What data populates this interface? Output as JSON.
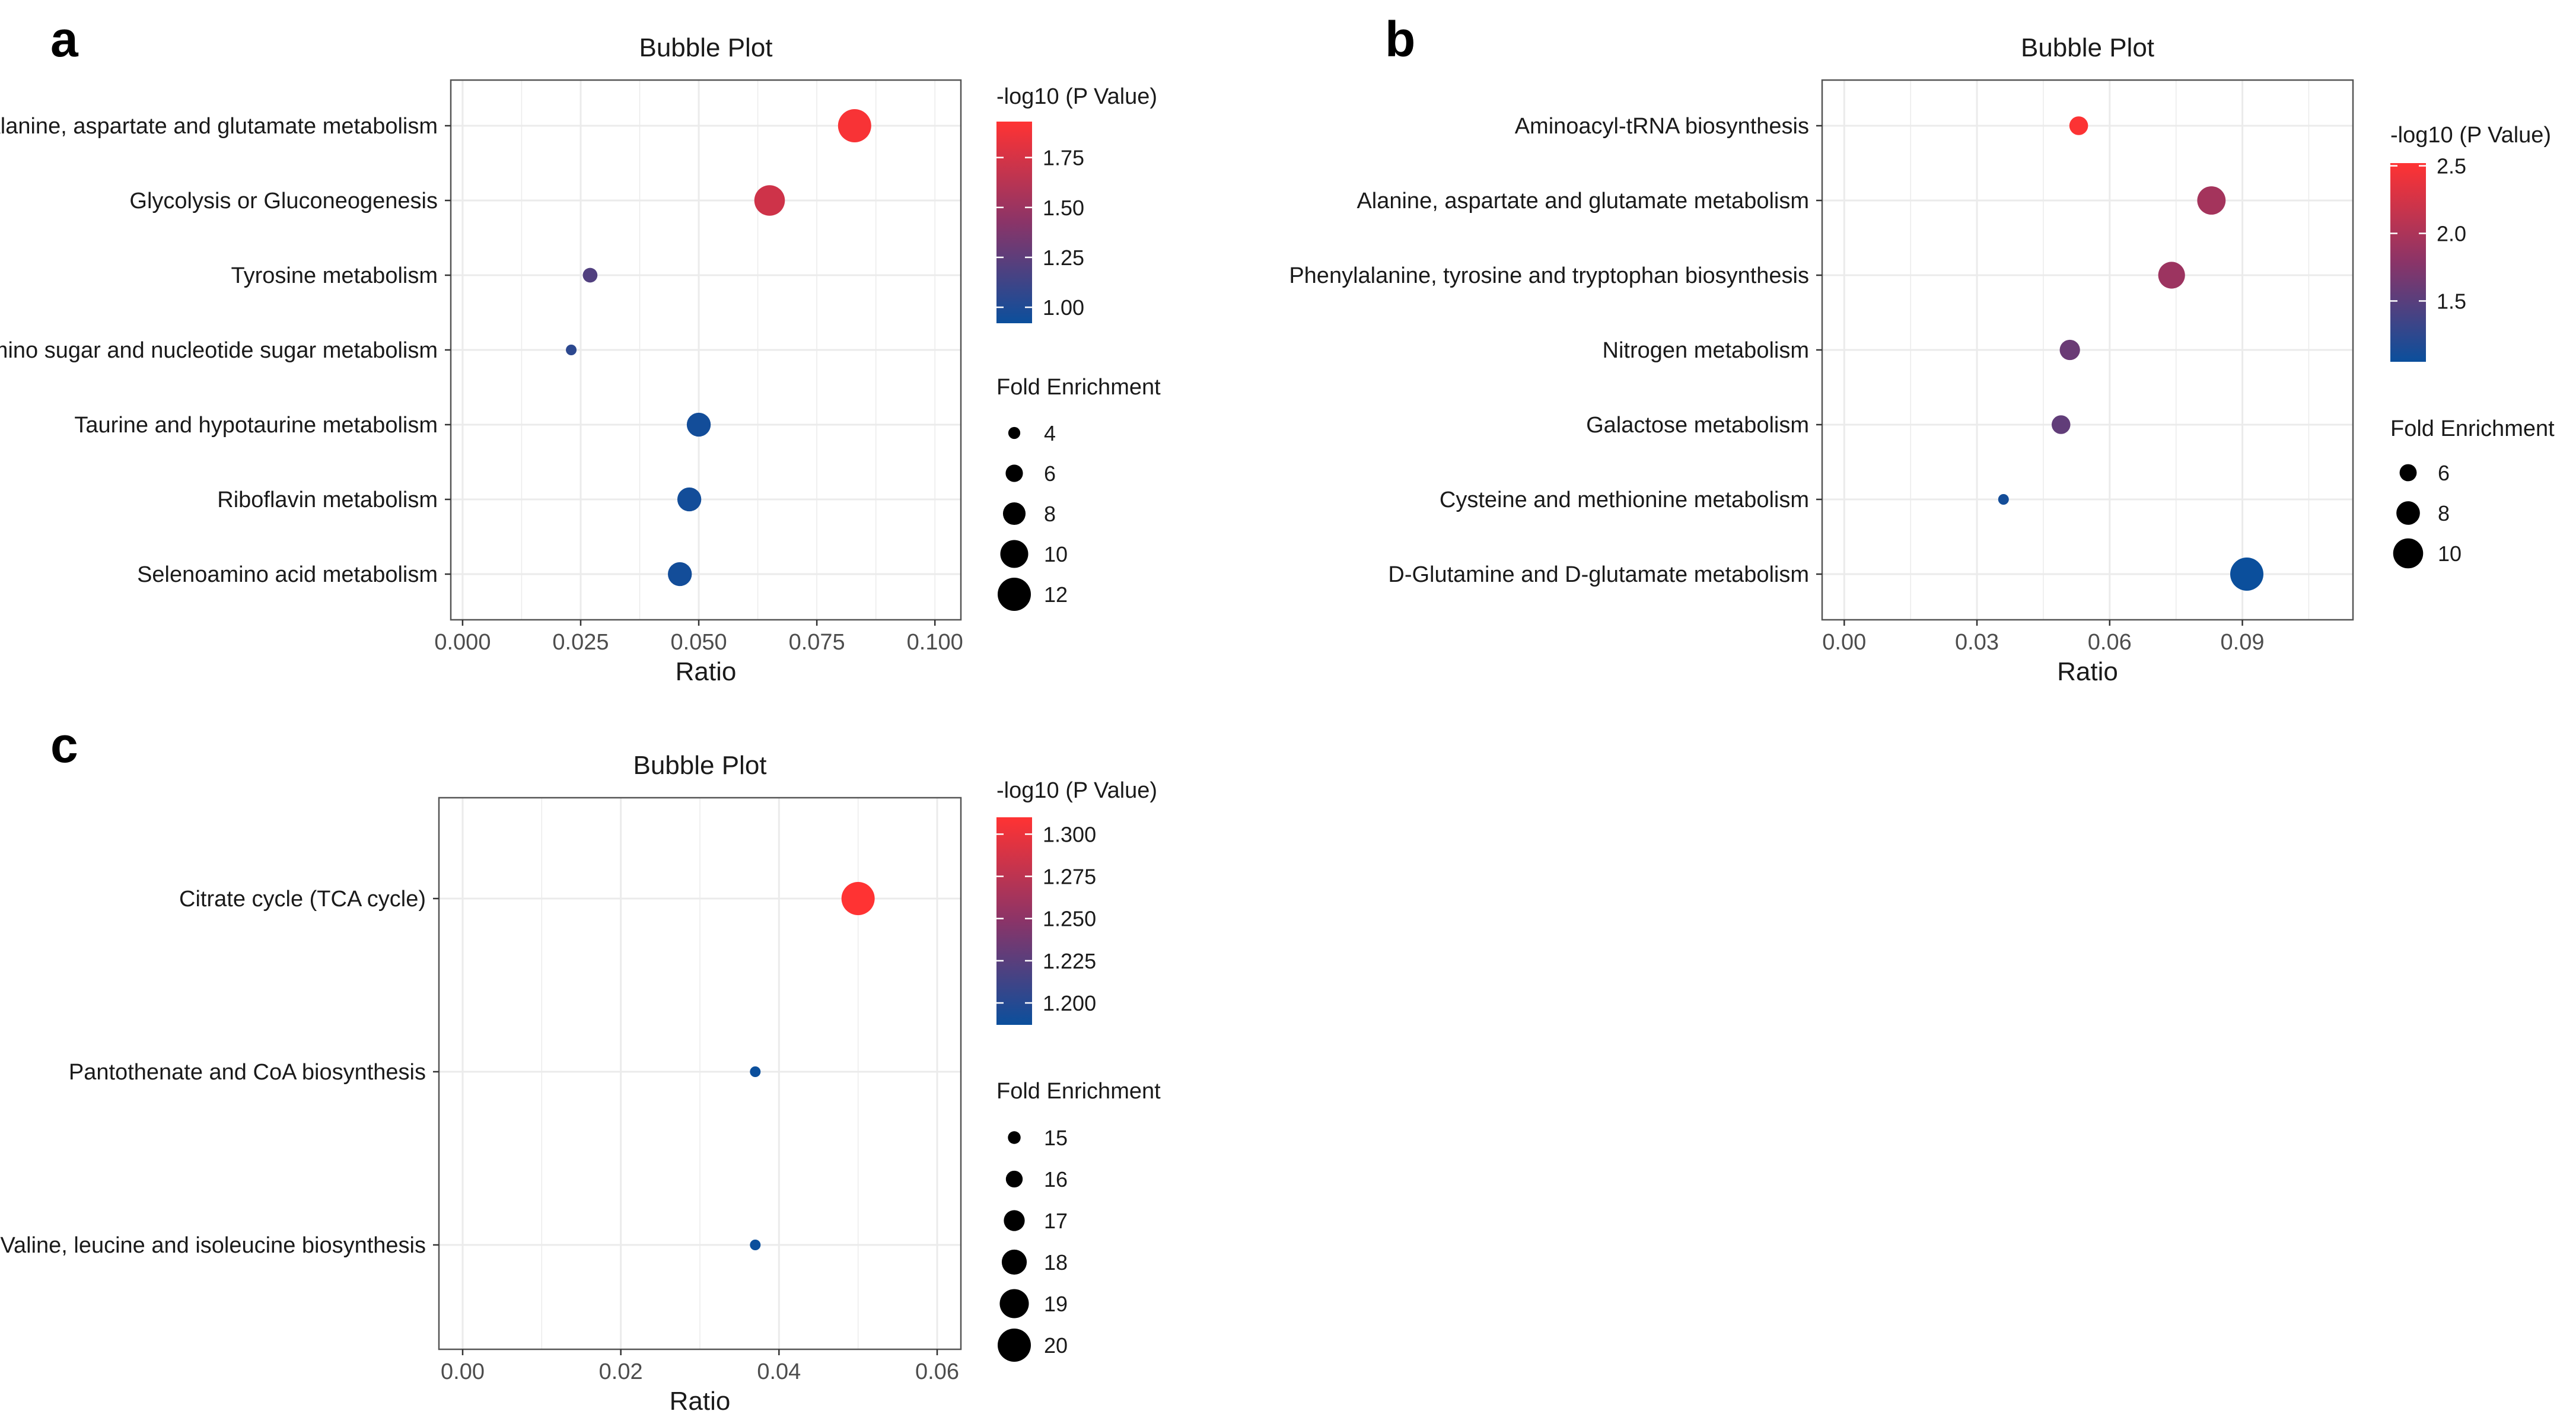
{
  "colors": {
    "low": "#0b4f9c",
    "mid": "#8a3468",
    "high": "#ff3333",
    "grid": "#ebebeb",
    "frame": "#555555"
  },
  "chart_data": [
    {
      "panel": "a",
      "type": "scatter",
      "title": "Bubble Plot",
      "xlabel": "Ratio",
      "ylabel": "",
      "xlim": [
        -0.0025,
        0.1055
      ],
      "xticks": [
        0.0,
        0.025,
        0.05,
        0.075,
        0.1
      ],
      "xtick_labels": [
        "0.000",
        "0.025",
        "0.050",
        "0.075",
        "0.100"
      ],
      "categories": [
        "Alanine, aspartate and glutamate metabolism",
        "Glycolysis or Gluconeogenesis",
        "Tyrosine metabolism",
        "Amino sugar and nucleotide sugar metabolism",
        "Taurine and hypotaurine metabolism",
        "Riboflavin metabolism",
        "Selenoamino acid metabolism"
      ],
      "x": [
        0.083,
        0.065,
        0.027,
        0.023,
        0.05,
        0.048,
        0.046
      ],
      "color_values": [
        1.9,
        1.72,
        1.2,
        1.05,
        0.95,
        0.95,
        0.95
      ],
      "size_values": [
        12,
        11,
        5,
        3.5,
        8.5,
        8.5,
        8.5
      ],
      "color_legend": {
        "title": "-log10 (P Value)",
        "range": [
          0.92,
          1.93
        ],
        "ticks": [
          1.0,
          1.25,
          1.5,
          1.75
        ],
        "tick_labels": [
          "1.00",
          "1.25",
          "1.50",
          "1.75"
        ]
      },
      "size_legend": {
        "title": "Fold Enrichment",
        "values": [
          4,
          6,
          8,
          10,
          12
        ],
        "labels": [
          "4",
          "6",
          "8",
          "10",
          "12"
        ]
      }
    },
    {
      "panel": "b",
      "type": "scatter",
      "title": "Bubble Plot",
      "xlabel": "Ratio",
      "ylabel": "",
      "xlim": [
        -0.005,
        0.115
      ],
      "xticks": [
        0.0,
        0.03,
        0.06,
        0.09
      ],
      "xtick_labels": [
        "0.00",
        "0.03",
        "0.06",
        "0.09"
      ],
      "categories": [
        "Aminoacyl-tRNA biosynthesis",
        "Alanine, aspartate and glutamate metabolism",
        "Phenylalanine, tyrosine and tryptophan biosynthesis",
        "Nitrogen metabolism",
        "Galactose metabolism",
        "Cysteine and methionine metabolism",
        "D-Glutamine and D-glutamate metabolism"
      ],
      "x": [
        0.053,
        0.083,
        0.074,
        0.051,
        0.049,
        0.036,
        0.091
      ],
      "color_values": [
        2.5,
        1.95,
        1.9,
        1.6,
        1.55,
        1.1,
        1.05
      ],
      "size_values": [
        6.5,
        9.5,
        9,
        7,
        6.5,
        4,
        11
      ],
      "color_legend": {
        "title": "-log10 (P Value)",
        "range": [
          1.05,
          2.52
        ],
        "ticks": [
          1.5,
          2.0,
          2.5
        ],
        "tick_labels": [
          "1.5",
          "2.0",
          "2.5"
        ]
      },
      "size_legend": {
        "title": "Fold Enrichment",
        "values": [
          6,
          8,
          10
        ],
        "labels": [
          "6",
          "8",
          "10"
        ]
      }
    },
    {
      "panel": "c",
      "type": "scatter",
      "title": "Bubble Plot",
      "xlabel": "Ratio",
      "ylabel": "",
      "xlim": [
        -0.003,
        0.063
      ],
      "xticks": [
        0.0,
        0.02,
        0.04,
        0.06
      ],
      "xtick_labels": [
        "0.00",
        "0.02",
        "0.04",
        "0.06"
      ],
      "categories": [
        "Citrate cycle (TCA cycle)",
        "Pantothenate and CoA biosynthesis",
        "Valine, leucine and isoleucine biosynthesis"
      ],
      "x": [
        0.05,
        0.037,
        0.037
      ],
      "color_values": [
        1.31,
        1.187,
        1.187
      ],
      "size_values": [
        20,
        14.5,
        14.5
      ],
      "color_legend": {
        "title": "-log10 (P Value)",
        "range": [
          1.187,
          1.31
        ],
        "ticks": [
          1.2,
          1.225,
          1.25,
          1.275,
          1.3
        ],
        "tick_labels": [
          "1.200",
          "1.225",
          "1.250",
          "1.275",
          "1.300"
        ]
      },
      "size_legend": {
        "title": "Fold Enrichment",
        "values": [
          15,
          16,
          17,
          18,
          19,
          20
        ],
        "labels": [
          "15",
          "16",
          "17",
          "18",
          "19",
          "20"
        ]
      }
    }
  ]
}
